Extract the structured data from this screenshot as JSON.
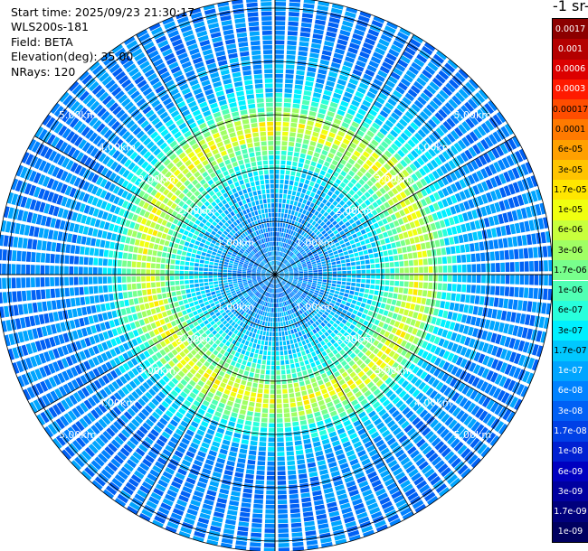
{
  "info": {
    "start_time": "Start time: 2025/09/23 21:30:17",
    "instrument": "WLS200s-181",
    "field": "Field: BETA",
    "elevation": "Elevation(deg): 35.00",
    "nrays": "NRays: 120"
  },
  "colorbar": {
    "title_fragment": "-1 sr-",
    "levels": [
      {
        "label": "0.0017",
        "color": "#8c0000"
      },
      {
        "label": "0.001",
        "color": "#b40000"
      },
      {
        "label": "0.0006",
        "color": "#dc0000"
      },
      {
        "label": "0.0003",
        "color": "#ff1a00"
      },
      {
        "label": "0.00017",
        "color": "#ff4d00"
      },
      {
        "label": "0.0001",
        "color": "#ff7a00"
      },
      {
        "label": "6e-05",
        "color": "#ffa000"
      },
      {
        "label": "3e-05",
        "color": "#ffc400"
      },
      {
        "label": "1.7e-05",
        "color": "#ffe600"
      },
      {
        "label": "1e-05",
        "color": "#f0ff10"
      },
      {
        "label": "6e-06",
        "color": "#c8ff3c"
      },
      {
        "label": "3e-06",
        "color": "#a0ff64"
      },
      {
        "label": "1.7e-06",
        "color": "#78ff8c"
      },
      {
        "label": "1e-06",
        "color": "#50ffb4"
      },
      {
        "label": "6e-07",
        "color": "#28ffdc"
      },
      {
        "label": "3e-07",
        "color": "#00f0ff"
      },
      {
        "label": "1.7e-07",
        "color": "#00c8ff"
      },
      {
        "label": "1e-07",
        "color": "#00a5ff"
      },
      {
        "label": "6e-08",
        "color": "#0082ff"
      },
      {
        "label": "3e-08",
        "color": "#0060f5"
      },
      {
        "label": "1.7e-08",
        "color": "#0040e6"
      },
      {
        "label": "1e-08",
        "color": "#0020d2"
      },
      {
        "label": "6e-09",
        "color": "#0000c0"
      },
      {
        "label": "3e-09",
        "color": "#0000a0"
      },
      {
        "label": "1.7e-09",
        "color": "#00007d"
      },
      {
        "label": "1e-09",
        "color": "#000060"
      }
    ]
  },
  "chart_data": {
    "type": "heatmap",
    "projection": "polar (PPI scan)",
    "range_ring_labels": [
      "1.00km",
      "2.00km",
      "3.00km",
      "4.00km",
      "5.00km"
    ],
    "range_rings_km": [
      1,
      2,
      3,
      4,
      5
    ],
    "max_range_km": 5.2,
    "n_rays": 120,
    "radial_profile": [
      {
        "range_km": 0.0,
        "level": 17
      },
      {
        "range_km": 0.5,
        "level": 18
      },
      {
        "range_km": 1.0,
        "level": 17
      },
      {
        "range_km": 1.5,
        "level": 16
      },
      {
        "range_km": 1.9,
        "level": 14
      },
      {
        "range_km": 2.2,
        "level": 12
      },
      {
        "range_km": 2.5,
        "level": 9
      },
      {
        "range_km": 2.75,
        "level": 11
      },
      {
        "range_km": 3.0,
        "level": 14
      },
      {
        "range_km": 3.3,
        "level": 16
      },
      {
        "range_km": 4.0,
        "level": 18
      },
      {
        "range_km": 5.2,
        "level": 18
      }
    ],
    "colorscale": "log, 1e-09 to 0.0017",
    "grid": true
  }
}
